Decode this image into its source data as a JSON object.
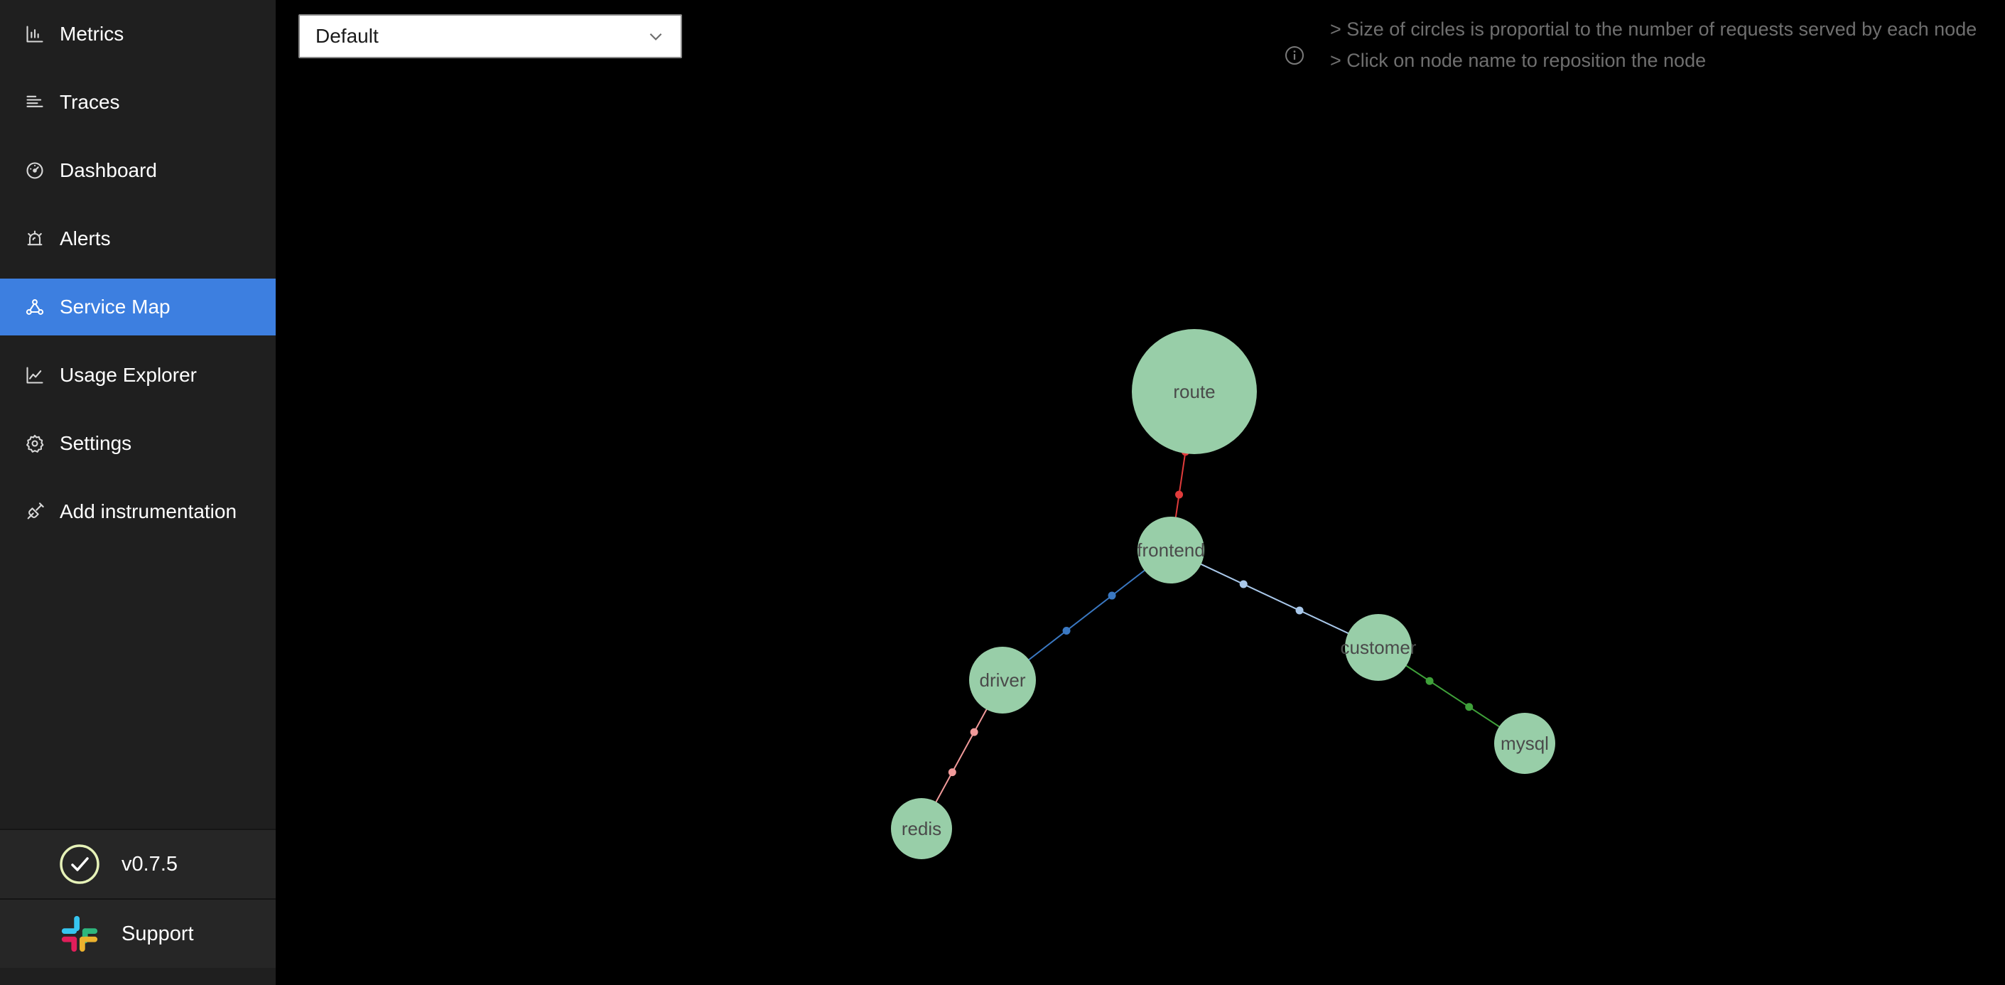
{
  "sidebar": {
    "items": [
      {
        "label": "Metrics",
        "icon": "bar-chart-icon",
        "active": false
      },
      {
        "label": "Traces",
        "icon": "list-icon",
        "active": false
      },
      {
        "label": "Dashboard",
        "icon": "dashboard-icon",
        "active": false
      },
      {
        "label": "Alerts",
        "icon": "alarm-icon",
        "active": false
      },
      {
        "label": "Service Map",
        "icon": "deployment-unit-icon",
        "active": true
      },
      {
        "label": "Usage Explorer",
        "icon": "line-chart-icon",
        "active": false
      },
      {
        "label": "Settings",
        "icon": "gear-icon",
        "active": false
      },
      {
        "label": "Add instrumentation",
        "icon": "api-icon",
        "active": false
      }
    ],
    "version": "v0.7.5",
    "support_label": "Support"
  },
  "toolbar": {
    "select_value": "Default"
  },
  "hints": {
    "line1": "> Size of circles is proportial to the number of requests served by each node",
    "line2": "> Click on node name to reposition the node"
  },
  "colors": {
    "node": "#98cea8",
    "node_label": "#4a4a4a",
    "edge_route": "#e03b3b",
    "edge_driver": "#3a78c2",
    "edge_customer": "#a9c8ea",
    "edge_mysql": "#3fa13a",
    "edge_redis": "#f19a9a",
    "active_nav": "#3d7fe0"
  },
  "service_map": {
    "nodes": [
      {
        "id": "route",
        "label": "route"
      },
      {
        "id": "frontend",
        "label": "frontend"
      },
      {
        "id": "driver",
        "label": "driver"
      },
      {
        "id": "customer",
        "label": "customer"
      },
      {
        "id": "mysql",
        "label": "mysql"
      },
      {
        "id": "redis",
        "label": "redis"
      }
    ],
    "edges": [
      {
        "source": "frontend",
        "target": "route",
        "color": "#e03b3b"
      },
      {
        "source": "frontend",
        "target": "driver",
        "color": "#3a78c2"
      },
      {
        "source": "frontend",
        "target": "customer",
        "color": "#a9c8ea"
      },
      {
        "source": "customer",
        "target": "mysql",
        "color": "#3fa13a"
      },
      {
        "source": "driver",
        "target": "redis",
        "color": "#f19a9a"
      }
    ]
  }
}
